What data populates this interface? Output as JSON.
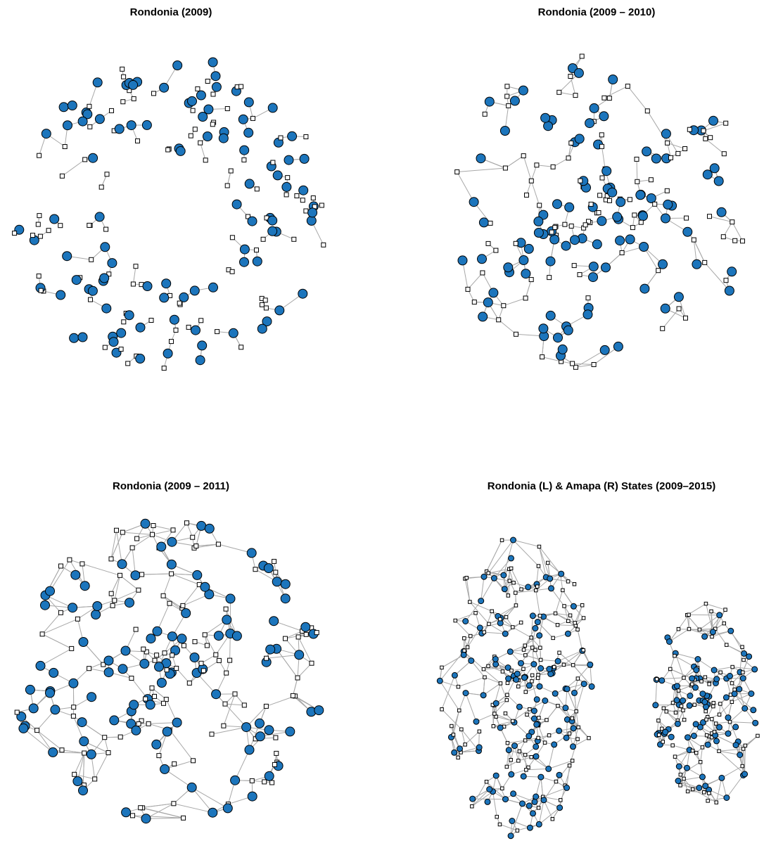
{
  "panels": [
    {
      "title": "Rondonia (2009)"
    },
    {
      "title": "Rondonia (2009 – 2010)"
    },
    {
      "title": "Rondonia (2009 – 2011)"
    },
    {
      "title": "Rondonia (L) & Amapa (R) States (2009–2015)"
    }
  ]
}
